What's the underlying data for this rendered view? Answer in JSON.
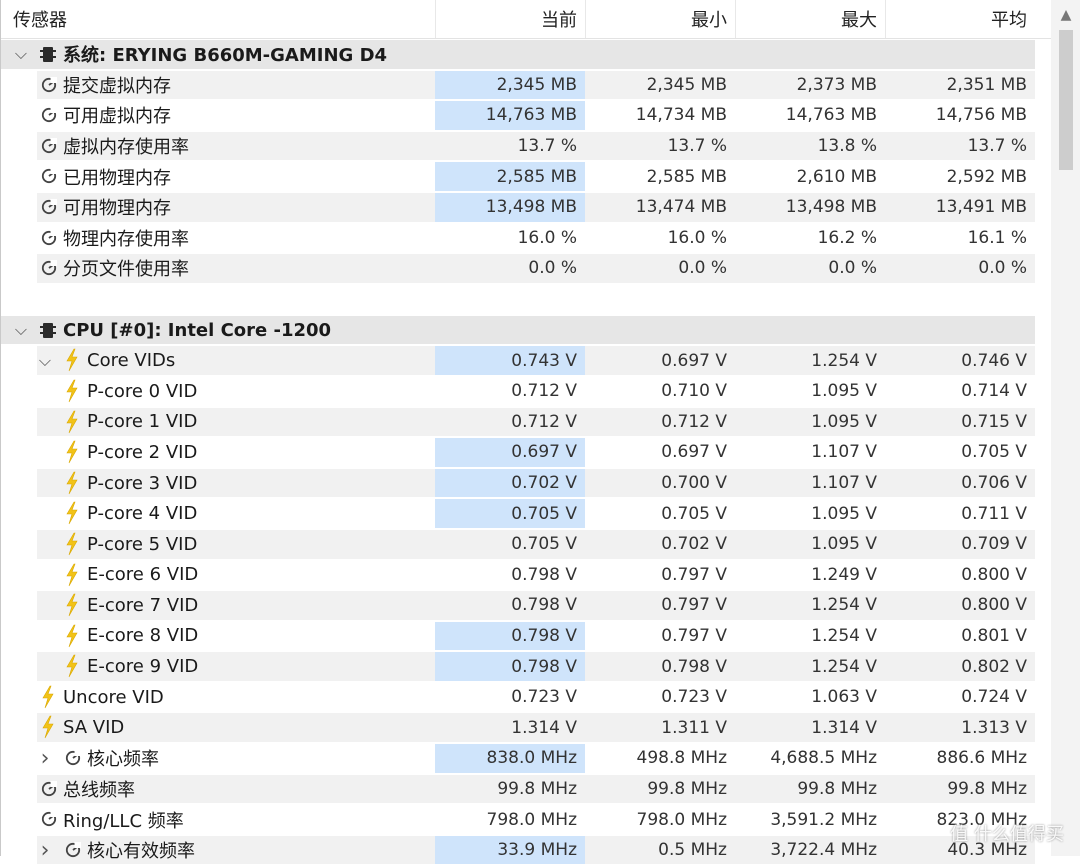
{
  "header": {
    "sensor": "传感器",
    "current": "当前",
    "min": "最小",
    "max": "最大",
    "avg": "平均"
  },
  "groups": [
    {
      "title": "系统: ERYING B660M-GAMING D4",
      "rows": [
        {
          "label": "提交虚拟内存",
          "values": [
            "2,345 MB",
            "2,345 MB",
            "2,373 MB",
            "2,351 MB"
          ],
          "icon": "gauge",
          "hl": true
        },
        {
          "label": "可用虚拟内存",
          "values": [
            "14,763 MB",
            "14,734 MB",
            "14,763 MB",
            "14,756 MB"
          ],
          "icon": "gauge",
          "hl": true
        },
        {
          "label": "虚拟内存使用率",
          "values": [
            "13.7 %",
            "13.7 %",
            "13.8 %",
            "13.7 %"
          ],
          "icon": "gauge",
          "hl": false
        },
        {
          "label": "已用物理内存",
          "values": [
            "2,585 MB",
            "2,585 MB",
            "2,610 MB",
            "2,592 MB"
          ],
          "icon": "gauge",
          "hl": true
        },
        {
          "label": "可用物理内存",
          "values": [
            "13,498 MB",
            "13,474 MB",
            "13,498 MB",
            "13,491 MB"
          ],
          "icon": "gauge",
          "hl": true
        },
        {
          "label": "物理内存使用率",
          "values": [
            "16.0 %",
            "16.0 %",
            "16.2 %",
            "16.1 %"
          ],
          "icon": "gauge",
          "hl": false
        },
        {
          "label": "分页文件使用率",
          "values": [
            "0.0 %",
            "0.0 %",
            "0.0 %",
            "0.0 %"
          ],
          "icon": "gauge",
          "hl": false
        }
      ]
    },
    {
      "title": "CPU [#0]: Intel Core -1200",
      "rows": [
        {
          "label": "Core VIDs",
          "values": [
            "0.743 V",
            "0.697 V",
            "1.254 V",
            "0.746 V"
          ],
          "icon": "bolt",
          "hl": true,
          "level": 1,
          "expanded": true
        },
        {
          "label": "P-core 0 VID",
          "values": [
            "0.712 V",
            "0.710 V",
            "1.095 V",
            "0.714 V"
          ],
          "icon": "bolt",
          "hl": false,
          "level": 2
        },
        {
          "label": "P-core 1 VID",
          "values": [
            "0.712 V",
            "0.712 V",
            "1.095 V",
            "0.715 V"
          ],
          "icon": "bolt",
          "hl": false,
          "level": 2
        },
        {
          "label": "P-core 2 VID",
          "values": [
            "0.697 V",
            "0.697 V",
            "1.107 V",
            "0.705 V"
          ],
          "icon": "bolt",
          "hl": true,
          "level": 2
        },
        {
          "label": "P-core 3 VID",
          "values": [
            "0.702 V",
            "0.700 V",
            "1.107 V",
            "0.706 V"
          ],
          "icon": "bolt",
          "hl": true,
          "level": 2
        },
        {
          "label": "P-core 4 VID",
          "values": [
            "0.705 V",
            "0.705 V",
            "1.095 V",
            "0.711 V"
          ],
          "icon": "bolt",
          "hl": true,
          "level": 2
        },
        {
          "label": "P-core 5 VID",
          "values": [
            "0.705 V",
            "0.702 V",
            "1.095 V",
            "0.709 V"
          ],
          "icon": "bolt",
          "hl": false,
          "level": 2
        },
        {
          "label": "E-core 6 VID",
          "values": [
            "0.798 V",
            "0.797 V",
            "1.249 V",
            "0.800 V"
          ],
          "icon": "bolt",
          "hl": false,
          "level": 2
        },
        {
          "label": "E-core 7 VID",
          "values": [
            "0.798 V",
            "0.797 V",
            "1.254 V",
            "0.800 V"
          ],
          "icon": "bolt",
          "hl": false,
          "level": 2
        },
        {
          "label": "E-core 8 VID",
          "values": [
            "0.798 V",
            "0.797 V",
            "1.254 V",
            "0.801 V"
          ],
          "icon": "bolt",
          "hl": true,
          "level": 2
        },
        {
          "label": "E-core 9 VID",
          "values": [
            "0.798 V",
            "0.798 V",
            "1.254 V",
            "0.802 V"
          ],
          "icon": "bolt",
          "hl": true,
          "level": 2
        },
        {
          "label": "Uncore VID",
          "values": [
            "0.723 V",
            "0.723 V",
            "1.063 V",
            "0.724 V"
          ],
          "icon": "bolt",
          "hl": false,
          "level": 0
        },
        {
          "label": "SA VID",
          "values": [
            "1.314 V",
            "1.311 V",
            "1.314 V",
            "1.313 V"
          ],
          "icon": "bolt",
          "hl": false,
          "level": 0
        },
        {
          "label": "核心频率",
          "values": [
            "838.0 MHz",
            "498.8 MHz",
            "4,688.5 MHz",
            "886.6 MHz"
          ],
          "icon": "gauge",
          "hl": true,
          "level": 1,
          "expanded": false
        },
        {
          "label": "总线频率",
          "values": [
            "99.8 MHz",
            "99.8 MHz",
            "99.8 MHz",
            "99.8 MHz"
          ],
          "icon": "gauge",
          "hl": false,
          "level": 0
        },
        {
          "label": "Ring/LLC 频率",
          "values": [
            "798.0 MHz",
            "798.0 MHz",
            "3,591.2 MHz",
            "823.0 MHz"
          ],
          "icon": "gauge",
          "hl": false,
          "level": 0
        },
        {
          "label": "核心有效频率",
          "values": [
            "33.9 MHz",
            "0.5 MHz",
            "3,722.4 MHz",
            "40.3 MHz"
          ],
          "icon": "gauge",
          "hl": true,
          "level": 1,
          "expanded": false
        }
      ]
    }
  ],
  "watermark": "值 什么值得买",
  "colors": {
    "highlight": "#cfe4fb",
    "group_bg": "#e6e6e6",
    "row_bg": "#f1f1f1",
    "bolt": "#f2c318"
  }
}
